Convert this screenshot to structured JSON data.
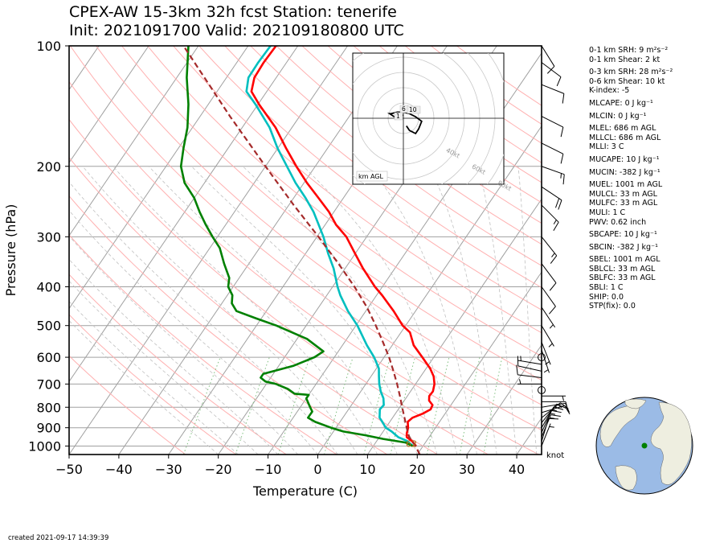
{
  "title": {
    "line1": "CPEX-AW 15-3km  32h fcst  Station: tenerife",
    "line2": "Init: 2021091700  Valid: 202109180800 UTC"
  },
  "footer": {
    "created": "created 2021-09-17 14:39:39"
  },
  "indices": [
    {
      "text": "0-1 km SRH: 9 m²s⁻²",
      "gap": true
    },
    {
      "text": "0-1 km Shear: 2 kt",
      "gap": false
    },
    {
      "text": "0-3 km SRH: 28 m²s⁻²",
      "gap": true
    },
    {
      "text": "0-6 km Shear: 10 kt",
      "gap": false
    },
    {
      "text": "K-index: -5",
      "gap": false
    },
    {
      "text": "MLCAPE: 0 J kg⁻¹",
      "gap": true
    },
    {
      "text": "MLCIN: 0 J kg⁻¹",
      "gap": true
    },
    {
      "text": "MLEL: 686 m AGL",
      "gap": true
    },
    {
      "text": "MLLCL: 686 m AGL",
      "gap": false
    },
    {
      "text": "MLLI: 3 C",
      "gap": false
    },
    {
      "text": "MUCAPE: 10 J kg⁻¹",
      "gap": true
    },
    {
      "text": "MUCIN: -382 J kg⁻¹",
      "gap": true
    },
    {
      "text": "MUEL: 1001 m AGL",
      "gap": true
    },
    {
      "text": "MULCL: 33 m AGL",
      "gap": false
    },
    {
      "text": "MULFC: 33 m AGL",
      "gap": false
    },
    {
      "text": "MULI: 1 C",
      "gap": false
    },
    {
      "text": "PWV: 0.62 inch",
      "gap": false
    },
    {
      "text": "SBCAPE: 10 J kg⁻¹",
      "gap": true
    },
    {
      "text": "SBCIN: -382 J kg⁻¹",
      "gap": true
    },
    {
      "text": "SBEL: 1001 m AGL",
      "gap": true
    },
    {
      "text": "SBLCL: 33 m AGL",
      "gap": false
    },
    {
      "text": "SBLFC: 33 m AGL",
      "gap": false
    },
    {
      "text": "SBLI: 1 C",
      "gap": false
    },
    {
      "text": "SHIP: 0.0",
      "gap": false
    },
    {
      "text": "STP(fix): 0.0",
      "gap": false
    }
  ],
  "colors": {
    "temperature": "#ff0000",
    "dewpoint": "#008000",
    "wetbulb": "#00bfbf",
    "parcel": "#a52a2a",
    "isotherm": "#a0a0a0",
    "dry_adiabat": "#ffb0b0",
    "moist_adiabat": "#c0c0c0",
    "mixing_ratio": "#80c080",
    "globe_land": "#eeeee0",
    "globe_ocean": "#9bbbe6",
    "station": "#008000"
  },
  "chart_data": {
    "type": "line",
    "subtype": "skew-t log-p",
    "xlabel": "Temperature (C)",
    "ylabel": "Pressure (hPa)",
    "xlim": [
      -50,
      45
    ],
    "ylim": [
      1050,
      100
    ],
    "y_scale": "log",
    "xticks": [
      -50,
      -40,
      -30,
      -20,
      -10,
      0,
      10,
      20,
      30,
      40
    ],
    "yticks": [
      100,
      200,
      300,
      400,
      500,
      600,
      700,
      800,
      900,
      1000
    ],
    "wind_unit_label": "knot",
    "surface_labels": [
      "62",
      "62"
    ],
    "series": [
      {
        "key": "temperature",
        "points": [
          [
            1000,
            18.6
          ],
          [
            970,
            17
          ],
          [
            950,
            15.5
          ],
          [
            930,
            15
          ],
          [
            900,
            14.5
          ],
          [
            870,
            13.6
          ],
          [
            850,
            14
          ],
          [
            830,
            15.5
          ],
          [
            810,
            16.5
          ],
          [
            790,
            16.3
          ],
          [
            770,
            15
          ],
          [
            750,
            14.4
          ],
          [
            730,
            14.5
          ],
          [
            700,
            13.8
          ],
          [
            670,
            12.6
          ],
          [
            640,
            10.8
          ],
          [
            600,
            7.7
          ],
          [
            560,
            4.3
          ],
          [
            520,
            1.8
          ],
          [
            500,
            -0.6
          ],
          [
            460,
            -4.4
          ],
          [
            420,
            -8.9
          ],
          [
            400,
            -11.5
          ],
          [
            360,
            -16.4
          ],
          [
            330,
            -20.1
          ],
          [
            300,
            -24.1
          ],
          [
            280,
            -27.8
          ],
          [
            260,
            -31
          ],
          [
            240,
            -35
          ],
          [
            220,
            -39.4
          ],
          [
            200,
            -43.8
          ],
          [
            180,
            -48.4
          ],
          [
            160,
            -53.3
          ],
          [
            140,
            -59.8
          ],
          [
            130,
            -63.1
          ],
          [
            120,
            -64.4
          ],
          [
            110,
            -64.6
          ],
          [
            100,
            -64.4
          ]
        ]
      },
      {
        "key": "wetbulb",
        "points": [
          [
            1000,
            18
          ],
          [
            970,
            16
          ],
          [
            950,
            13.8
          ],
          [
            920,
            11.7
          ],
          [
            900,
            10
          ],
          [
            870,
            8.5
          ],
          [
            850,
            7.4
          ],
          [
            810,
            6.3
          ],
          [
            790,
            6.5
          ],
          [
            760,
            5.5
          ],
          [
            730,
            4
          ],
          [
            700,
            2.7
          ],
          [
            670,
            1.6
          ],
          [
            640,
            0.5
          ],
          [
            600,
            -2
          ],
          [
            560,
            -5.1
          ],
          [
            520,
            -8.1
          ],
          [
            500,
            -9.7
          ],
          [
            460,
            -13.6
          ],
          [
            420,
            -17.3
          ],
          [
            400,
            -19
          ],
          [
            360,
            -22.3
          ],
          [
            330,
            -25.5
          ],
          [
            300,
            -28.7
          ],
          [
            280,
            -31.3
          ],
          [
            260,
            -34.1
          ],
          [
            240,
            -37.6
          ],
          [
            220,
            -41.7
          ],
          [
            200,
            -45.7
          ],
          [
            180,
            -50.1
          ],
          [
            160,
            -54.5
          ],
          [
            140,
            -60.5
          ],
          [
            130,
            -64.1
          ],
          [
            120,
            -65.6
          ],
          [
            110,
            -65.7
          ],
          [
            100,
            -65.5
          ]
        ]
      },
      {
        "key": "dewpoint",
        "points": [
          [
            1000,
            17.9
          ],
          [
            980,
            16
          ],
          [
            960,
            11
          ],
          [
            940,
            7
          ],
          [
            920,
            2
          ],
          [
            900,
            -1
          ],
          [
            870,
            -5
          ],
          [
            850,
            -7
          ],
          [
            840,
            -7
          ],
          [
            820,
            -7
          ],
          [
            800,
            -8
          ],
          [
            780,
            -9
          ],
          [
            760,
            -10
          ],
          [
            745,
            -10
          ],
          [
            740,
            -13
          ],
          [
            720,
            -15
          ],
          [
            700,
            -18
          ],
          [
            690,
            -20.5
          ],
          [
            675,
            -22
          ],
          [
            660,
            -22
          ],
          [
            630,
            -17
          ],
          [
            600,
            -14
          ],
          [
            580,
            -13
          ],
          [
            540,
            -18
          ],
          [
            500,
            -26
          ],
          [
            480,
            -31
          ],
          [
            460,
            -36
          ],
          [
            440,
            -38
          ],
          [
            420,
            -39
          ],
          [
            400,
            -41
          ],
          [
            380,
            -42
          ],
          [
            350,
            -45
          ],
          [
            320,
            -48
          ],
          [
            300,
            -51
          ],
          [
            280,
            -54
          ],
          [
            260,
            -57
          ],
          [
            240,
            -60
          ],
          [
            220,
            -64
          ],
          [
            200,
            -67
          ],
          [
            180,
            -69
          ],
          [
            160,
            -71
          ],
          [
            140,
            -74
          ],
          [
            120,
            -78
          ],
          [
            100,
            -82
          ]
        ]
      },
      {
        "key": "parcel",
        "points": [
          [
            1050,
            20.5
          ],
          [
            1000,
            18.5
          ],
          [
            950,
            16
          ],
          [
            900,
            14.2
          ],
          [
            850,
            12.4
          ],
          [
            800,
            10.5
          ],
          [
            750,
            8.5
          ],
          [
            700,
            6.3
          ],
          [
            650,
            3.8
          ],
          [
            600,
            1
          ],
          [
            550,
            -2.3
          ],
          [
            500,
            -6
          ],
          [
            450,
            -10.3
          ],
          [
            400,
            -15.6
          ],
          [
            350,
            -22
          ],
          [
            300,
            -29.7
          ],
          [
            250,
            -39
          ],
          [
            200,
            -50
          ],
          [
            150,
            -64
          ],
          [
            100,
            -83
          ]
        ]
      }
    ],
    "wind_barbs": [
      {
        "p": 1000,
        "u": -2,
        "v": -5
      },
      {
        "p": 975,
        "u": -3,
        "v": -10
      },
      {
        "p": 950,
        "u": -5,
        "v": -12
      },
      {
        "p": 925,
        "u": -6,
        "v": -13
      },
      {
        "p": 900,
        "u": -7,
        "v": -12
      },
      {
        "p": 875,
        "u": -8,
        "v": -10
      },
      {
        "p": 850,
        "u": -10,
        "v": -8
      },
      {
        "p": 825,
        "u": -10,
        "v": -3
      },
      {
        "p": 800,
        "u": -12,
        "v": -2
      },
      {
        "p": 775,
        "u": -8,
        "v": 0
      },
      {
        "p": 750,
        "u": -4,
        "v": 0
      },
      {
        "p": 725,
        "u": 0,
        "v": 0
      },
      {
        "p": 700,
        "u": 4,
        "v": 0
      },
      {
        "p": 675,
        "u": 8,
        "v": -1
      },
      {
        "p": 650,
        "u": 9,
        "v": -2
      },
      {
        "p": 625,
        "u": 6,
        "v": -1
      },
      {
        "p": 600,
        "u": 0,
        "v": 0
      },
      {
        "p": 575,
        "u": -1,
        "v": 3
      },
      {
        "p": 550,
        "u": -2,
        "v": 5
      },
      {
        "p": 500,
        "u": -3,
        "v": 5
      },
      {
        "p": 450,
        "u": -4,
        "v": 6
      },
      {
        "p": 400,
        "u": -5,
        "v": 7
      },
      {
        "p": 350,
        "u": -6,
        "v": 8
      },
      {
        "p": 300,
        "u": -8,
        "v": 10
      },
      {
        "p": 250,
        "u": -12,
        "v": 12
      },
      {
        "p": 225,
        "u": -15,
        "v": 10
      },
      {
        "p": 200,
        "u": -14,
        "v": 5
      },
      {
        "p": 175,
        "u": -10,
        "v": 5
      },
      {
        "p": 150,
        "u": -8,
        "v": 4
      },
      {
        "p": 125,
        "u": -10,
        "v": 4
      },
      {
        "p": 110,
        "u": -8,
        "v": 6
      },
      {
        "p": 100,
        "u": -5,
        "v": 8
      }
    ],
    "hodograph": {
      "label": "km AGL",
      "ring_labels": [
        "40kt",
        "60kt",
        "80kt"
      ],
      "height_labels": [
        "6",
        "10",
        "1"
      ],
      "trace": [
        [
          -2,
          -5
        ],
        [
          -4,
          -8
        ],
        [
          -6,
          -9
        ],
        [
          -8,
          -10
        ],
        [
          -10,
          -7
        ],
        [
          -12,
          -2
        ],
        [
          -8,
          1
        ],
        [
          -4,
          3
        ],
        [
          0,
          4
        ],
        [
          4,
          4
        ],
        [
          8,
          3
        ],
        [
          9,
          3
        ],
        [
          6,
          1
        ],
        [
          0,
          2
        ]
      ]
    }
  }
}
